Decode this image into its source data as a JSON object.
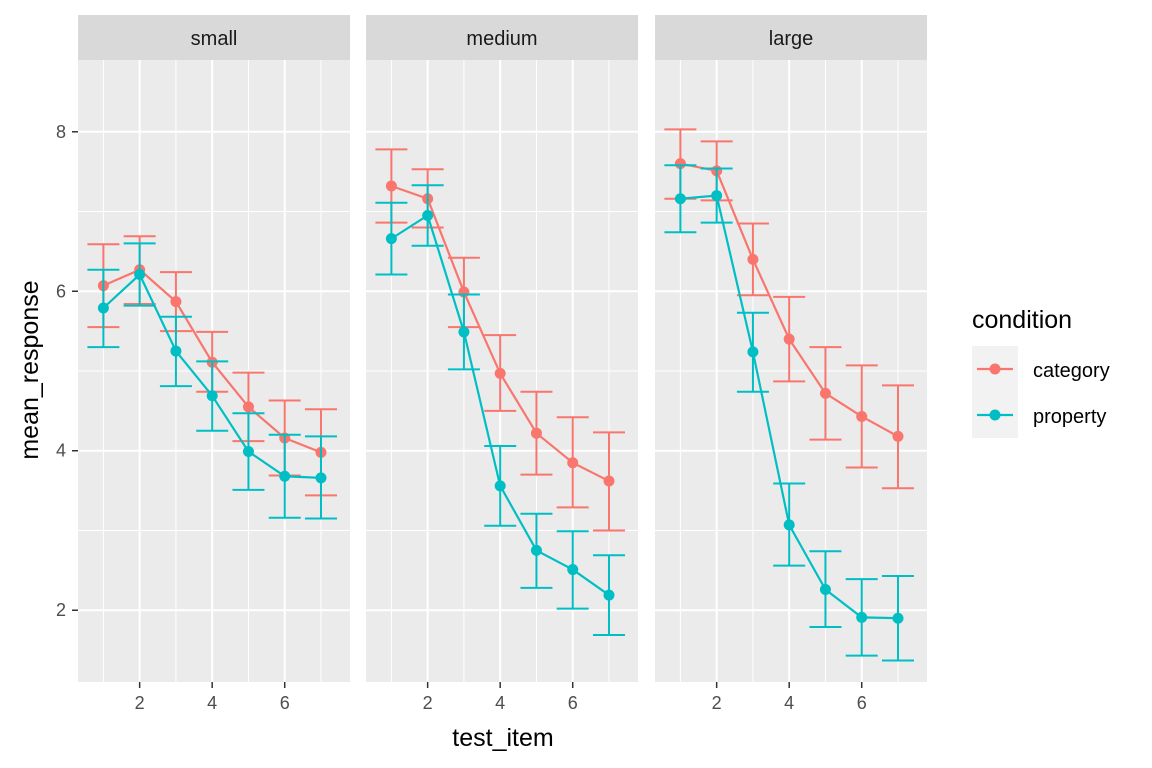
{
  "chart_data": {
    "type": "line",
    "subtype": "faceted line with error bars",
    "xlabel": "test_item",
    "ylabel": "mean_response",
    "xlim": [
      0.3,
      7.8
    ],
    "ylim": [
      1.1,
      8.9
    ],
    "x_ticks": [
      2,
      4,
      6
    ],
    "y_ticks": [
      2,
      4,
      6,
      8
    ],
    "grid": true,
    "legend": {
      "title": "condition",
      "placement": "right"
    },
    "series_names": [
      "category",
      "property"
    ],
    "colors": {
      "category": "#F8766D",
      "property": "#00BFC4",
      "panel_bg": "#EBEBEB",
      "strip_bg": "#D9D9D9",
      "grid": "#FFFFFF"
    },
    "facets": [
      {
        "label": "small",
        "series": [
          {
            "name": "category",
            "points": [
              {
                "x": 1,
                "y": 6.07,
                "ymin": 5.55,
                "ymax": 6.59
              },
              {
                "x": 2,
                "y": 6.27,
                "ymin": 5.84,
                "ymax": 6.69
              },
              {
                "x": 3,
                "y": 5.87,
                "ymin": 5.5,
                "ymax": 6.24
              },
              {
                "x": 4,
                "y": 5.11,
                "ymin": 4.74,
                "ymax": 5.49
              },
              {
                "x": 5,
                "y": 4.55,
                "ymin": 4.12,
                "ymax": 4.98
              },
              {
                "x": 6,
                "y": 4.16,
                "ymin": 3.69,
                "ymax": 4.63
              },
              {
                "x": 7,
                "y": 3.98,
                "ymin": 3.44,
                "ymax": 4.52
              }
            ]
          },
          {
            "name": "property",
            "points": [
              {
                "x": 1,
                "y": 5.79,
                "ymin": 5.3,
                "ymax": 6.27
              },
              {
                "x": 2,
                "y": 6.21,
                "ymin": 5.82,
                "ymax": 6.6
              },
              {
                "x": 3,
                "y": 5.25,
                "ymin": 4.81,
                "ymax": 5.68
              },
              {
                "x": 4,
                "y": 4.69,
                "ymin": 4.25,
                "ymax": 5.12
              },
              {
                "x": 5,
                "y": 3.99,
                "ymin": 3.51,
                "ymax": 4.47
              },
              {
                "x": 6,
                "y": 3.68,
                "ymin": 3.16,
                "ymax": 4.2
              },
              {
                "x": 7,
                "y": 3.66,
                "ymin": 3.15,
                "ymax": 4.18
              }
            ]
          }
        ]
      },
      {
        "label": "medium",
        "series": [
          {
            "name": "category",
            "points": [
              {
                "x": 1,
                "y": 7.32,
                "ymin": 6.86,
                "ymax": 7.78
              },
              {
                "x": 2,
                "y": 7.16,
                "ymin": 6.8,
                "ymax": 7.53
              },
              {
                "x": 3,
                "y": 5.99,
                "ymin": 5.55,
                "ymax": 6.42
              },
              {
                "x": 4,
                "y": 4.97,
                "ymin": 4.5,
                "ymax": 5.45
              },
              {
                "x": 5,
                "y": 4.22,
                "ymin": 3.7,
                "ymax": 4.74
              },
              {
                "x": 6,
                "y": 3.85,
                "ymin": 3.29,
                "ymax": 4.42
              },
              {
                "x": 7,
                "y": 3.62,
                "ymin": 3.0,
                "ymax": 4.23
              }
            ]
          },
          {
            "name": "property",
            "points": [
              {
                "x": 1,
                "y": 6.66,
                "ymin": 6.21,
                "ymax": 7.11
              },
              {
                "x": 2,
                "y": 6.95,
                "ymin": 6.57,
                "ymax": 7.33
              },
              {
                "x": 3,
                "y": 5.49,
                "ymin": 5.02,
                "ymax": 5.96
              },
              {
                "x": 4,
                "y": 3.56,
                "ymin": 3.06,
                "ymax": 4.06
              },
              {
                "x": 5,
                "y": 2.75,
                "ymin": 2.28,
                "ymax": 3.21
              },
              {
                "x": 6,
                "y": 2.51,
                "ymin": 2.02,
                "ymax": 2.99
              },
              {
                "x": 7,
                "y": 2.19,
                "ymin": 1.69,
                "ymax": 2.69
              }
            ]
          }
        ]
      },
      {
        "label": "large",
        "series": [
          {
            "name": "category",
            "points": [
              {
                "x": 1,
                "y": 7.6,
                "ymin": 7.16,
                "ymax": 8.03
              },
              {
                "x": 2,
                "y": 7.51,
                "ymin": 7.14,
                "ymax": 7.88
              },
              {
                "x": 3,
                "y": 6.4,
                "ymin": 5.95,
                "ymax": 6.85
              },
              {
                "x": 4,
                "y": 5.4,
                "ymin": 4.87,
                "ymax": 5.93
              },
              {
                "x": 5,
                "y": 4.72,
                "ymin": 4.14,
                "ymax": 5.3
              },
              {
                "x": 6,
                "y": 4.43,
                "ymin": 3.79,
                "ymax": 5.07
              },
              {
                "x": 7,
                "y": 4.18,
                "ymin": 3.53,
                "ymax": 4.82
              }
            ]
          },
          {
            "name": "property",
            "points": [
              {
                "x": 1,
                "y": 7.16,
                "ymin": 6.74,
                "ymax": 7.58
              },
              {
                "x": 2,
                "y": 7.2,
                "ymin": 6.86,
                "ymax": 7.54
              },
              {
                "x": 3,
                "y": 5.24,
                "ymin": 4.74,
                "ymax": 5.73
              },
              {
                "x": 4,
                "y": 3.07,
                "ymin": 2.56,
                "ymax": 3.59
              },
              {
                "x": 5,
                "y": 2.26,
                "ymin": 1.79,
                "ymax": 2.74
              },
              {
                "x": 6,
                "y": 1.91,
                "ymin": 1.43,
                "ymax": 2.39
              },
              {
                "x": 7,
                "y": 1.9,
                "ymin": 1.37,
                "ymax": 2.43
              }
            ]
          }
        ]
      }
    ]
  }
}
